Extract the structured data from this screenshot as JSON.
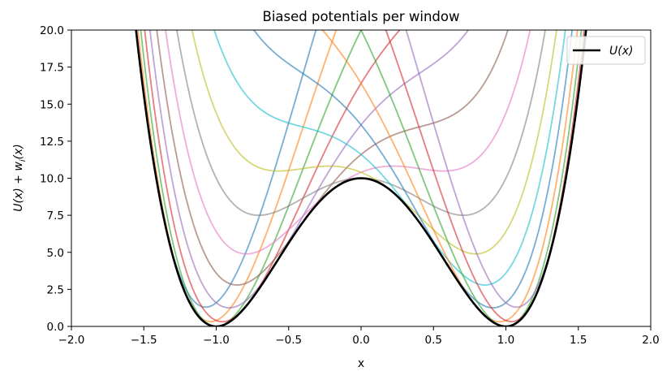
{
  "chart_data": {
    "type": "line",
    "title": "Biased potentials per window",
    "xlabel": "x",
    "ylabel": "U(x) + w_i(x)",
    "xlim": [
      -2.0,
      2.0
    ],
    "ylim": [
      0.0,
      20.0
    ],
    "xticks": [
      "−2.0",
      "−1.5",
      "−1.0",
      "−0.5",
      "0.0",
      "0.5",
      "1.0",
      "1.5",
      "2.0"
    ],
    "yticks": [
      "0.0",
      "2.5",
      "5.0",
      "7.5",
      "10.0",
      "12.5",
      "15.0",
      "17.5",
      "20.0"
    ],
    "potential": {
      "name": "U(x)",
      "formula": "10*(x^2-1)^2",
      "color": "#000000"
    },
    "bias_windows": [
      {
        "center": -1.4,
        "k": 20,
        "color": "#1f77b4"
      },
      {
        "center": -1.2,
        "k": 20,
        "color": "#ff7f0e"
      },
      {
        "center": -1.0,
        "k": 20,
        "color": "#2ca02c"
      },
      {
        "center": -0.8,
        "k": 20,
        "color": "#d62728"
      },
      {
        "center": -0.6,
        "k": 20,
        "color": "#9467bd"
      },
      {
        "center": -0.4,
        "k": 20,
        "color": "#8c564b"
      },
      {
        "center": -0.2,
        "k": 20,
        "color": "#e377c2"
      },
      {
        "center": 0.0,
        "k": 20,
        "color": "#7f7f7f"
      },
      {
        "center": 0.2,
        "k": 20,
        "color": "#bcbd22"
      },
      {
        "center": 0.4,
        "k": 20,
        "color": "#17becf"
      },
      {
        "center": 0.6,
        "k": 20,
        "color": "#1f77b4"
      },
      {
        "center": 0.8,
        "k": 20,
        "color": "#ff7f0e"
      },
      {
        "center": 1.0,
        "k": 20,
        "color": "#2ca02c"
      },
      {
        "center": 1.2,
        "k": 20,
        "color": "#d62728"
      },
      {
        "center": 1.4,
        "k": 20,
        "color": "#9467bd"
      }
    ],
    "legend": {
      "placement": "top-right",
      "entries": [
        {
          "label": "U(x)",
          "color": "#000000"
        }
      ]
    }
  }
}
